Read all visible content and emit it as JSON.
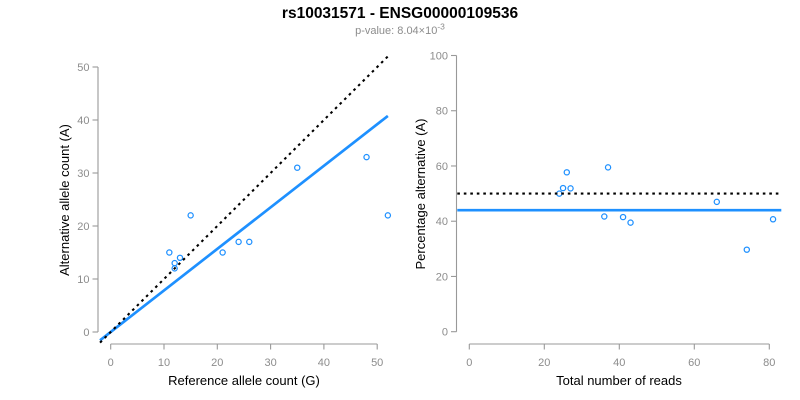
{
  "header": {
    "title": "rs10031571 - ENSG00000109536",
    "pvalue_label": "p-value: 8.04×10",
    "pvalue_exponent": "-3"
  },
  "colors": {
    "accent_blue": "#1E90FF",
    "reference_line_black": "#000000",
    "axis_gray": "#999999",
    "tick_label_gray": "#8c8c8c",
    "subtitle_gray": "#8c8c8c",
    "title_black": "#000000",
    "background": "#ffffff"
  },
  "chart_data": [
    {
      "type": "scatter",
      "name": "allele-count-scatter",
      "title": "",
      "xlabel": "Reference allele count (G)",
      "ylabel": "Alternative allele count (A)",
      "xticks": [
        0,
        10,
        20,
        30,
        40,
        50
      ],
      "yticks": [
        0,
        10,
        20,
        30,
        40,
        50
      ],
      "xlim": [
        0,
        50
      ],
      "ylim": [
        0,
        50
      ],
      "grid": false,
      "legend": false,
      "marker": "open-circle",
      "points": [
        [
          11,
          15
        ],
        [
          12,
          12
        ],
        [
          12,
          13
        ],
        [
          13,
          14
        ],
        [
          15,
          22
        ],
        [
          21,
          15
        ],
        [
          24,
          17
        ],
        [
          26,
          17
        ],
        [
          35,
          31
        ],
        [
          48,
          33
        ],
        [
          52,
          22
        ]
      ],
      "lines": [
        {
          "name": "fit-line",
          "style": "solid",
          "slope": 0.784,
          "intercept": 0,
          "color_key": "accent_blue"
        },
        {
          "name": "identity-line",
          "style": "dotted",
          "slope": 1,
          "intercept": 0,
          "color_key": "reference_line_black"
        }
      ]
    },
    {
      "type": "scatter",
      "name": "percentage-scatter",
      "title": "",
      "xlabel": "Total number of reads",
      "ylabel": "Percentage alternative (A)",
      "xticks": [
        0,
        20,
        40,
        60,
        80
      ],
      "yticks": [
        0,
        20,
        40,
        60,
        80,
        100
      ],
      "xlim": [
        0,
        80
      ],
      "ylim": [
        0,
        100
      ],
      "grid": false,
      "legend": false,
      "marker": "open-circle",
      "points": [
        [
          26,
          57.7
        ],
        [
          24,
          50
        ],
        [
          25,
          52
        ],
        [
          27,
          51.9
        ],
        [
          37,
          59.5
        ],
        [
          36,
          41.7
        ],
        [
          41,
          41.5
        ],
        [
          43,
          39.5
        ],
        [
          66,
          47
        ],
        [
          74,
          29.7
        ],
        [
          81,
          40.7
        ]
      ],
      "lines": [
        {
          "name": "fit-line",
          "style": "solid",
          "slope": 0,
          "intercept": 44,
          "color_key": "accent_blue"
        },
        {
          "name": "reference-line",
          "style": "dotted",
          "slope": 0,
          "intercept": 50,
          "color_key": "reference_line_black"
        }
      ]
    }
  ]
}
